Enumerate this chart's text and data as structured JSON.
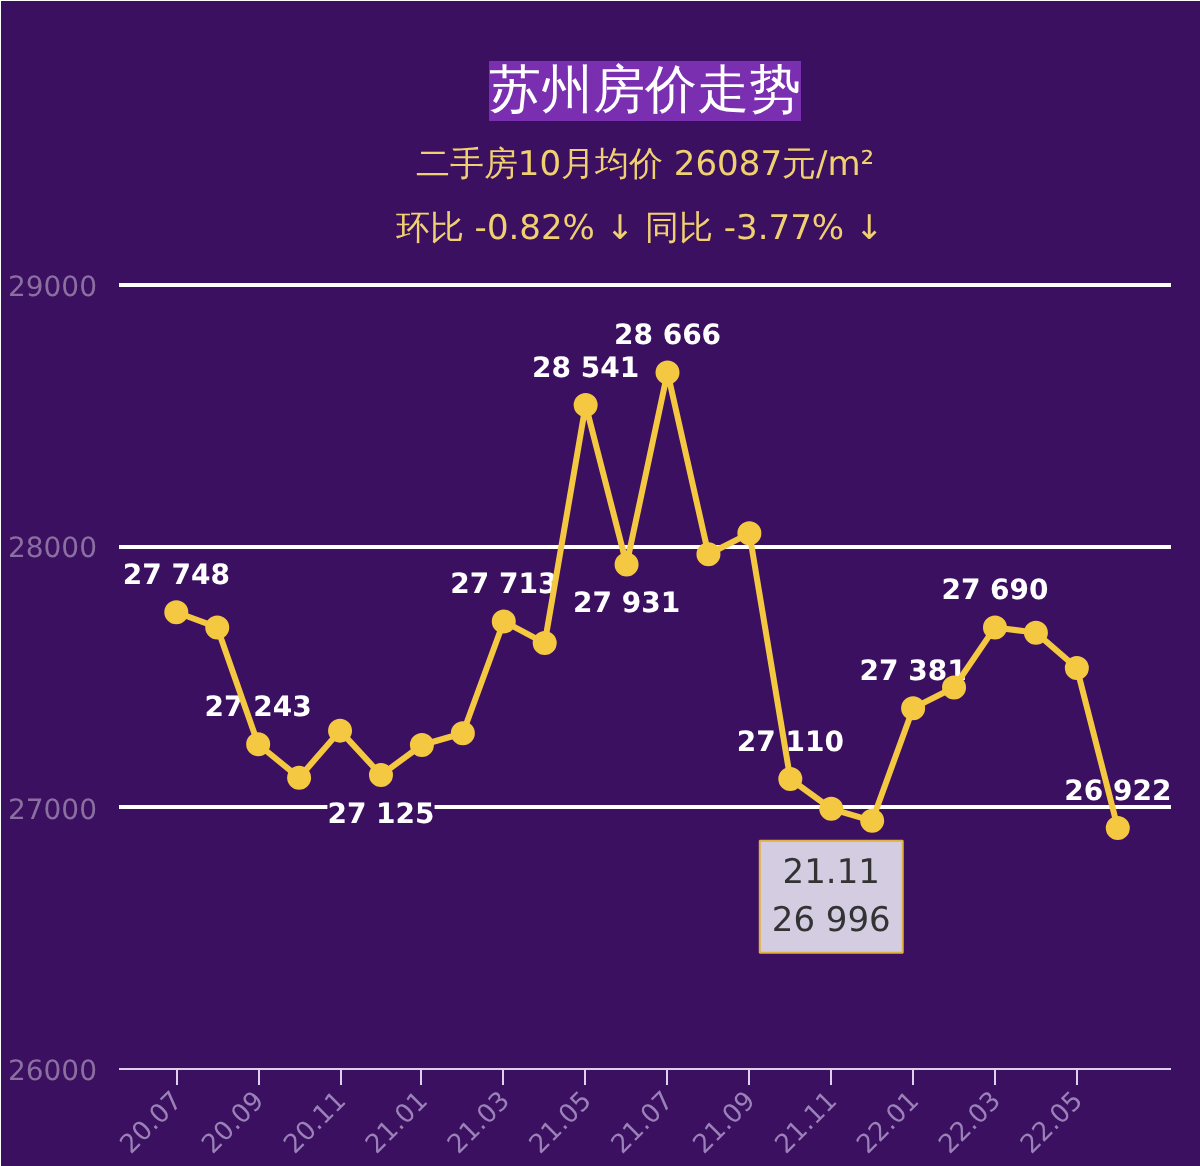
{
  "chart_data": {
    "type": "line",
    "title": "苏州房价走势",
    "subtitle": "二手房10月均价 26087元/m²",
    "annotations": [
      "环比 -0.82% ↓  同比 -3.77% ↓",
      {
        "text": "21.11\n26 996",
        "x": "21.11",
        "y": 26996
      }
    ],
    "categories": [
      "20.07",
      null,
      "20.09",
      null,
      "20.11",
      null,
      "21.01",
      null,
      "21.03",
      null,
      "21.05",
      null,
      "21.07",
      null,
      "21.09",
      null,
      "21.11",
      null,
      "22.01",
      null,
      "22.03",
      null,
      "22.05",
      null
    ],
    "series": [
      {
        "color": "#f5c842",
        "values": [
          27748,
          27690,
          27243,
          27115,
          27295,
          27125,
          27240,
          27285,
          27713,
          27630,
          28541,
          27931,
          28666,
          27970,
          28050,
          27110,
          26996,
          26950,
          27381,
          27460,
          27690,
          27670,
          27535,
          26922
        ],
        "value_labels": [
          "27 748",
          null,
          "27 243",
          null,
          null,
          "27 125",
          null,
          null,
          "27 713",
          null,
          "28 541",
          "27 931",
          "28 666",
          null,
          null,
          "27 110",
          null,
          null,
          "27 381",
          null,
          "27 690",
          null,
          null,
          "26 922"
        ]
      }
    ],
    "ylim": [
      26000,
      29100
    ],
    "yticks": [
      26000,
      27000,
      28000,
      29000
    ],
    "grid": "y",
    "marker": "circle",
    "line_style": "solid"
  }
}
